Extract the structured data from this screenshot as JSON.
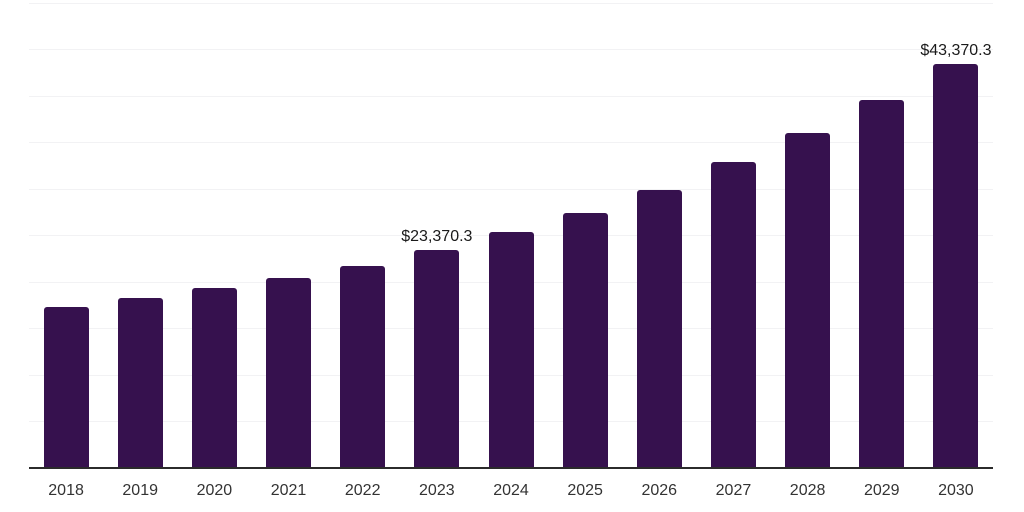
{
  "chart": {
    "bar_color": "#36114e",
    "gridline_color": "#f2f2f4",
    "axis_color": "#2b2b2b",
    "tick_label_color": "#333333",
    "value_label_color": "#1a1a1a",
    "background_color": "#ffffff"
  },
  "chart_data": {
    "type": "bar",
    "title": "",
    "xlabel": "",
    "ylabel": "",
    "categories": [
      "2018",
      "2019",
      "2020",
      "2021",
      "2022",
      "2023",
      "2024",
      "2025",
      "2026",
      "2027",
      "2028",
      "2029",
      "2030"
    ],
    "values": [
      17300,
      18250,
      19300,
      20450,
      21750,
      23370.3,
      25330,
      27400,
      29900,
      32820,
      36030,
      39540,
      43370.3
    ],
    "value_labels": {
      "2023": "$23,370.3",
      "2030": "$43,370.3"
    },
    "ylim": [
      0,
      50000
    ],
    "gridline_step": 5000,
    "y_axis_visible": false,
    "x_axis_visible": true,
    "grid": "horizontal",
    "legend_position": "none",
    "currency_prefix": "$"
  }
}
